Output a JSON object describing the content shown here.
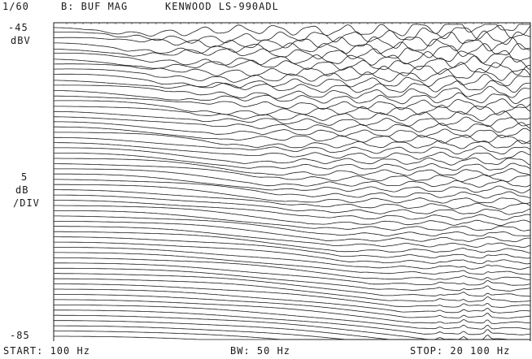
{
  "header": {
    "index": "1/60",
    "trace": "B: BUF MAG",
    "device": "KENWOOD LS-990ADL"
  },
  "y_axis": {
    "top_value": "-45",
    "top_unit": "dBV",
    "scale_value": "5",
    "scale_unit": "dB",
    "scale_per": "/DIV",
    "bottom_value": "-85"
  },
  "footer": {
    "start": "START: 100 Hz",
    "bandwidth": "BW: 50 Hz",
    "stop": "STOP: 20 100 Hz"
  },
  "chart_data": {
    "type": "line",
    "style": "waterfall",
    "trace_count": 60,
    "x_range_hz": [
      100,
      20100
    ],
    "y_range_dbv": [
      -85,
      -45
    ],
    "db_per_div": 5,
    "color": "#1a1a1a",
    "grid": false
  }
}
